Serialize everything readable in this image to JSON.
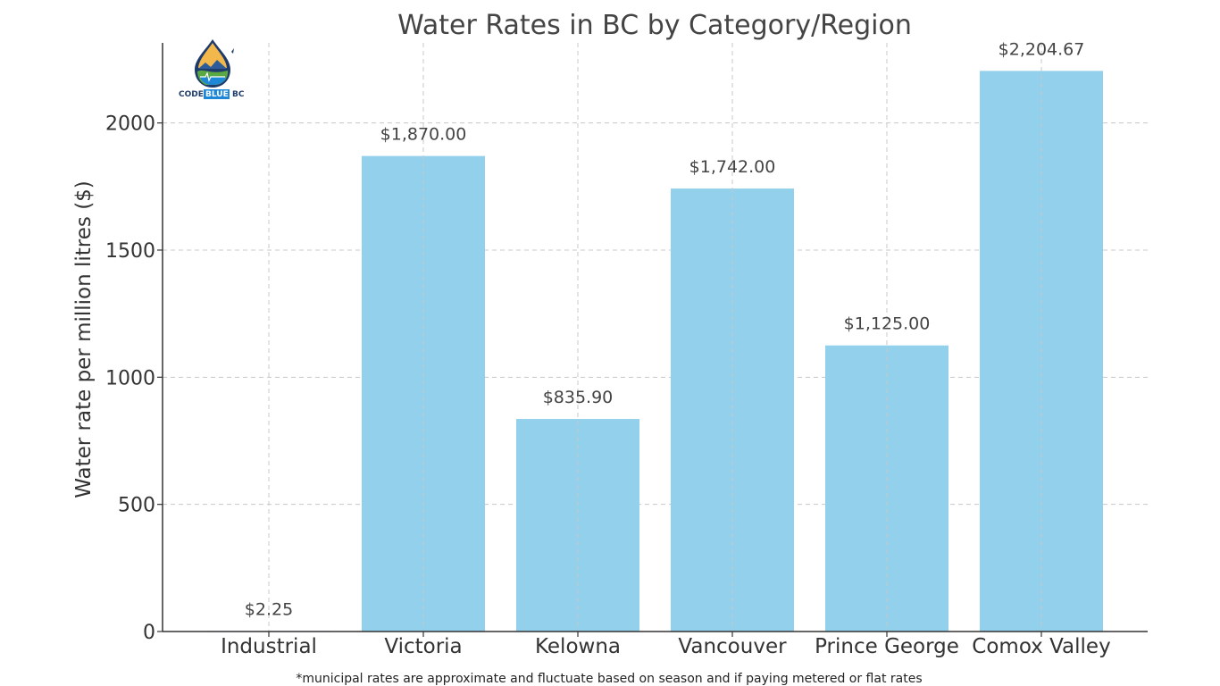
{
  "chart_data": {
    "type": "bar",
    "title": "Water Rates in BC by Category/Region",
    "xlabel": "",
    "ylabel": "Water rate per million litres ($)",
    "categories": [
      "Industrial",
      "Victoria",
      "Kelowna",
      "Vancouver",
      "Prince George",
      "Comox Valley"
    ],
    "values": [
      2.25,
      1870.0,
      835.9,
      1742.0,
      1125.0,
      2204.67
    ],
    "data_labels": [
      "$2.25",
      "$1,870.00",
      "$835.90",
      "$1,742.00",
      "$1,125.00",
      "$2,204.67"
    ],
    "y_ticks": [
      0,
      500,
      1000,
      1500,
      2000
    ],
    "ylim": [
      0,
      2314.9
    ],
    "grid": true,
    "bar_color": "#92d0eb"
  },
  "footnote": "*municipal rates are approximate and fluctuate based on season and if paying metered or flat rates",
  "logo": {
    "word_left": "CODE",
    "word_mid": "BLUE",
    "word_right": "BC",
    "colors": {
      "navy": "#1f3b6b",
      "blue": "#1e88d8",
      "gold": "#f2b84b",
      "green": "#5aa844"
    }
  }
}
